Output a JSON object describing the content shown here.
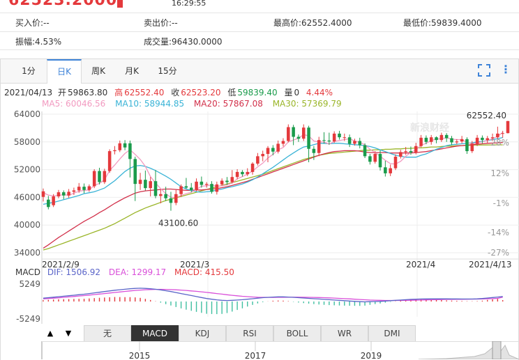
{
  "top": {
    "big_price": "62523.2000",
    "time": "16:29:55"
  },
  "quote": {
    "buy": "买入价:--",
    "sell": "卖出价:--",
    "high": "最高价:62552.4000",
    "low": "最低价:59839.4000",
    "amplitude": "振幅:4.53%",
    "volume": "成交量:96430.0000"
  },
  "tabs": [
    "1分",
    "日K",
    "周K",
    "月K",
    "15分"
  ],
  "active_tab": "日K",
  "ohlc_line": {
    "date": "2021/04/13",
    "open_label": "开",
    "open": "59863.80",
    "high_label": "高",
    "high": "62552.40",
    "close_label": "收",
    "close": "62523.20",
    "low_label": "低",
    "low": "59839.40",
    "vol_label": "量",
    "vol": "0",
    "pct": "4.44%"
  },
  "ma_legend": {
    "ma5": "MA5: 60046.56",
    "ma10": "MA10: 58944.85",
    "ma20": "MA20: 57867.08",
    "ma30": "MA30: 57369.79"
  },
  "macd_legend": {
    "name": "MACD",
    "dif": "DIF: 1506.92",
    "dea": "DEA: 1299.17",
    "macd": "MACD: 415.50"
  },
  "indicator_tabs": [
    "无",
    "MACD",
    "KDJ",
    "RSI",
    "BOLL",
    "WR",
    "DMI"
  ],
  "active_indicator": "MACD",
  "nav_arrows": {
    "up": "▲",
    "down": "▼"
  },
  "overview_years": [
    "2015",
    "2017",
    "2019"
  ],
  "watermark": "新浪财经",
  "colors": {
    "up": "#e4393c",
    "down": "#1a9b4b",
    "ma5": "#f29ac0",
    "ma10": "#39b3d6",
    "ma20": "#d2304a",
    "ma30": "#9ab528",
    "dif": "#5a64c8",
    "dea": "#d94fd9",
    "macd": "#e4393c",
    "accent": "#3e83d8"
  },
  "chart_data": {
    "type": "candlestick",
    "price_axis": {
      "ticks": [
        "64000",
        "58000",
        "52000",
        "46000",
        "40000",
        "34000"
      ],
      "values": [
        64000,
        58000,
        52000,
        46000,
        40000,
        34000
      ]
    },
    "pct_axis": {
      "ticks": [
        "28%",
        "12%",
        "-1%",
        "-14%",
        "-27%"
      ]
    },
    "x_labels": [
      "2021/2/9",
      "2021/3",
      "2021/4",
      "2021/4/13"
    ],
    "annotations": {
      "max": "62552.40",
      "min": "43100.60"
    },
    "candles": [
      {
        "o": 46100,
        "c": 47300,
        "h": 47900,
        "l": 45100
      },
      {
        "o": 45500,
        "c": 43900,
        "h": 46300,
        "l": 43400
      },
      {
        "o": 44300,
        "c": 46200,
        "h": 46700,
        "l": 43900
      },
      {
        "o": 46200,
        "c": 47100,
        "h": 47600,
        "l": 45800
      },
      {
        "o": 47100,
        "c": 46400,
        "h": 47500,
        "l": 45600
      },
      {
        "o": 46400,
        "c": 47200,
        "h": 47800,
        "l": 45900
      },
      {
        "o": 47200,
        "c": 47500,
        "h": 48100,
        "l": 46500
      },
      {
        "o": 47500,
        "c": 48300,
        "h": 49100,
        "l": 47000
      },
      {
        "o": 48300,
        "c": 47600,
        "h": 49000,
        "l": 46900
      },
      {
        "o": 47600,
        "c": 48400,
        "h": 48800,
        "l": 47200
      },
      {
        "o": 48400,
        "c": 51700,
        "h": 52100,
        "l": 48000
      },
      {
        "o": 51700,
        "c": 49300,
        "h": 52400,
        "l": 48800
      },
      {
        "o": 49300,
        "c": 51700,
        "h": 52200,
        "l": 48900
      },
      {
        "o": 51700,
        "c": 56000,
        "h": 56400,
        "l": 51300
      },
      {
        "o": 56000,
        "c": 56200,
        "h": 57100,
        "l": 55300
      },
      {
        "o": 56200,
        "c": 57700,
        "h": 58300,
        "l": 55800
      },
      {
        "o": 57700,
        "c": 56800,
        "h": 58400,
        "l": 56200
      },
      {
        "o": 57700,
        "c": 54300,
        "h": 58300,
        "l": 50300
      },
      {
        "o": 54300,
        "c": 48900,
        "h": 54800,
        "l": 45200
      },
      {
        "o": 48900,
        "c": 49800,
        "h": 51300,
        "l": 47600
      },
      {
        "o": 49800,
        "c": 48000,
        "h": 51800,
        "l": 47500
      },
      {
        "o": 48000,
        "c": 49500,
        "h": 50400,
        "l": 46200
      },
      {
        "o": 49500,
        "c": 46300,
        "h": 51900,
        "l": 45800
      },
      {
        "o": 46300,
        "c": 46700,
        "h": 47700,
        "l": 44700
      },
      {
        "o": 46700,
        "c": 45800,
        "h": 48300,
        "l": 45200
      },
      {
        "o": 45800,
        "c": 44800,
        "h": 47200,
        "l": 43100
      },
      {
        "o": 44800,
        "c": 46700,
        "h": 47600,
        "l": 44300
      },
      {
        "o": 46700,
        "c": 48400,
        "h": 48800,
        "l": 46100
      },
      {
        "o": 48400,
        "c": 48100,
        "h": 50200,
        "l": 47800
      },
      {
        "o": 48100,
        "c": 47600,
        "h": 49100,
        "l": 47100
      },
      {
        "o": 47600,
        "c": 49400,
        "h": 50100,
        "l": 47300
      },
      {
        "o": 49400,
        "c": 48700,
        "h": 50500,
        "l": 48100
      },
      {
        "o": 48700,
        "c": 48900,
        "h": 49300,
        "l": 48100
      },
      {
        "o": 48900,
        "c": 47200,
        "h": 49500,
        "l": 46800
      },
      {
        "o": 47200,
        "c": 48800,
        "h": 49400,
        "l": 46600
      },
      {
        "o": 48800,
        "c": 49600,
        "h": 50100,
        "l": 48500
      },
      {
        "o": 49600,
        "c": 49300,
        "h": 50400,
        "l": 48700
      },
      {
        "o": 49300,
        "c": 50400,
        "h": 51900,
        "l": 49000
      },
      {
        "o": 50400,
        "c": 51500,
        "h": 52100,
        "l": 49900
      },
      {
        "o": 51500,
        "c": 51000,
        "h": 51900,
        "l": 50500
      },
      {
        "o": 51000,
        "c": 51500,
        "h": 52300,
        "l": 50600
      },
      {
        "o": 51500,
        "c": 53300,
        "h": 53600,
        "l": 50900
      },
      {
        "o": 53300,
        "c": 54900,
        "h": 55600,
        "l": 52900
      },
      {
        "o": 54900,
        "c": 55400,
        "h": 56100,
        "l": 53800
      },
      {
        "o": 55400,
        "c": 56700,
        "h": 57100,
        "l": 53600
      },
      {
        "o": 56700,
        "c": 55900,
        "h": 57300,
        "l": 55100
      },
      {
        "o": 55900,
        "c": 57600,
        "h": 58300,
        "l": 55500
      },
      {
        "o": 57600,
        "c": 58200,
        "h": 58800,
        "l": 57000
      },
      {
        "o": 58200,
        "c": 61200,
        "h": 61800,
        "l": 57900
      },
      {
        "o": 61200,
        "c": 59100,
        "h": 61700,
        "l": 57300
      },
      {
        "o": 59100,
        "c": 58700,
        "h": 59600,
        "l": 58000
      },
      {
        "o": 58700,
        "c": 61100,
        "h": 61800,
        "l": 58200
      },
      {
        "o": 61100,
        "c": 56500,
        "h": 61500,
        "l": 53600
      },
      {
        "o": 56500,
        "c": 55600,
        "h": 57100,
        "l": 54100
      },
      {
        "o": 55600,
        "c": 58400,
        "h": 59100,
        "l": 54900
      },
      {
        "o": 58400,
        "c": 58300,
        "h": 60100,
        "l": 57600
      },
      {
        "o": 58300,
        "c": 58100,
        "h": 60000,
        "l": 57400
      },
      {
        "o": 58100,
        "c": 59800,
        "h": 60300,
        "l": 57800
      },
      {
        "o": 59800,
        "c": 59000,
        "h": 60400,
        "l": 58500
      },
      {
        "o": 59000,
        "c": 59000,
        "h": 59800,
        "l": 58200
      },
      {
        "o": 59000,
        "c": 57600,
        "h": 59600,
        "l": 56900
      },
      {
        "o": 57600,
        "c": 58200,
        "h": 58700,
        "l": 57200
      },
      {
        "o": 58200,
        "c": 57300,
        "h": 58900,
        "l": 56600
      },
      {
        "o": 57300,
        "c": 54900,
        "h": 57700,
        "l": 54500
      },
      {
        "o": 54900,
        "c": 53700,
        "h": 55400,
        "l": 53100
      },
      {
        "o": 53700,
        "c": 55400,
        "h": 56000,
        "l": 53300
      },
      {
        "o": 55400,
        "c": 52500,
        "h": 56200,
        "l": 51800
      },
      {
        "o": 52500,
        "c": 51200,
        "h": 53900,
        "l": 50500
      },
      {
        "o": 51200,
        "c": 52300,
        "h": 53100,
        "l": 50600
      },
      {
        "o": 52300,
        "c": 54800,
        "h": 55300,
        "l": 51900
      },
      {
        "o": 54800,
        "c": 55800,
        "h": 56300,
        "l": 54400
      },
      {
        "o": 55800,
        "c": 56000,
        "h": 56900,
        "l": 55200
      },
      {
        "o": 56000,
        "c": 55700,
        "h": 57000,
        "l": 55200
      },
      {
        "o": 55700,
        "c": 57100,
        "h": 57800,
        "l": 55300
      },
      {
        "o": 57100,
        "c": 58900,
        "h": 59500,
        "l": 56800
      },
      {
        "o": 58900,
        "c": 58000,
        "h": 59400,
        "l": 57500
      },
      {
        "o": 58000,
        "c": 59000,
        "h": 59500,
        "l": 57400
      },
      {
        "o": 59000,
        "c": 58400,
        "h": 59200,
        "l": 57700
      },
      {
        "o": 58400,
        "c": 59500,
        "h": 60000,
        "l": 58000
      },
      {
        "o": 59500,
        "c": 58800,
        "h": 59900,
        "l": 58000
      },
      {
        "o": 58800,
        "c": 57900,
        "h": 59300,
        "l": 57300
      },
      {
        "o": 57900,
        "c": 58100,
        "h": 58600,
        "l": 57500
      },
      {
        "o": 58100,
        "c": 58600,
        "h": 59300,
        "l": 57700
      },
      {
        "o": 58600,
        "c": 56000,
        "h": 59000,
        "l": 55400
      },
      {
        "o": 56000,
        "c": 57600,
        "h": 58200,
        "l": 55600
      },
      {
        "o": 57600,
        "c": 58900,
        "h": 59500,
        "l": 57100
      },
      {
        "o": 58900,
        "c": 58400,
        "h": 59400,
        "l": 57700
      },
      {
        "o": 58400,
        "c": 58800,
        "h": 59300,
        "l": 57800
      },
      {
        "o": 58800,
        "c": 59000,
        "h": 59800,
        "l": 58200
      },
      {
        "o": 59000,
        "c": 59800,
        "h": 61300,
        "l": 58600
      },
      {
        "o": 59800,
        "c": 59900,
        "h": 60400,
        "l": 58900
      },
      {
        "o": 59900,
        "c": 62523,
        "h": 62552,
        "l": 59839
      }
    ],
    "ma5": [
      47000,
      46500,
      46300,
      46400,
      46600,
      46400,
      46900,
      47300,
      47500,
      47600,
      48600,
      49000,
      49800,
      51800,
      53000,
      54300,
      55500,
      56300,
      55300,
      54200,
      52700,
      50500,
      49100,
      47900,
      46800,
      46000,
      46000,
      46400,
      46800,
      47100,
      47700,
      48400,
      48500,
      48700,
      48400,
      48500,
      48700,
      49100,
      50000,
      50500,
      51000,
      51700,
      52600,
      53400,
      54500,
      55300,
      56300,
      56800,
      58000,
      58400,
      58800,
      59600,
      59300,
      58200,
      58000,
      58000,
      57500,
      58100,
      58300,
      58500,
      58700,
      58200,
      57900,
      57400,
      56400,
      55700,
      54900,
      54000,
      53300,
      53200,
      53800,
      54900,
      55700,
      56300,
      57300,
      57700,
      58300,
      58600,
      58700,
      58900,
      58600,
      58500,
      58500,
      57900,
      57600,
      57800,
      58000,
      58300,
      58700,
      59200,
      60046
    ],
    "ma10": [
      44500,
      44700,
      44900,
      45200,
      45500,
      45800,
      46100,
      46400,
      46800,
      47000,
      47200,
      47600,
      48000,
      48800,
      49600,
      50600,
      51600,
      52300,
      52800,
      52900,
      52700,
      52300,
      51800,
      51200,
      50600,
      49900,
      49100,
      48300,
      47800,
      47500,
      47200,
      47100,
      47200,
      47300,
      47600,
      47800,
      48100,
      48300,
      48600,
      48900,
      49300,
      49800,
      50400,
      51100,
      51800,
      52500,
      53300,
      54100,
      54900,
      55600,
      56300,
      56900,
      57100,
      57400,
      57700,
      57700,
      57600,
      57700,
      57700,
      57600,
      57500,
      57400,
      57300,
      57200,
      57000,
      56700,
      56300,
      55900,
      55500,
      55100,
      54900,
      54700,
      54700,
      54700,
      55100,
      55400,
      55900,
      56400,
      56800,
      57200,
      57400,
      57500,
      57600,
      57700,
      57800,
      58000,
      58100,
      58300,
      58500,
      58700,
      58944
    ],
    "ma20": [
      35000,
      35700,
      36500,
      37300,
      38000,
      38700,
      39400,
      40100,
      40800,
      41400,
      42000,
      42700,
      43300,
      44000,
      44700,
      45300,
      45900,
      46400,
      46900,
      47200,
      47400,
      47500,
      47600,
      47700,
      47800,
      47800,
      47700,
      47600,
      47500,
      47500,
      47600,
      47600,
      47700,
      47800,
      47900,
      48100,
      48300,
      48600,
      48900,
      49200,
      49500,
      49900,
      50300,
      50700,
      51100,
      51500,
      51900,
      52300,
      52700,
      53100,
      53500,
      53900,
      54300,
      54700,
      55100,
      55400,
      55700,
      55900,
      56000,
      56100,
      56100,
      56100,
      56000,
      55800,
      55700,
      55700,
      55700,
      55700,
      55600,
      55600,
      55600,
      55600,
      55600,
      55700,
      55800,
      55900,
      56100,
      56300,
      56500,
      56700,
      56900,
      57100,
      57200,
      57300,
      57400,
      57500,
      57600,
      57700,
      57750,
      57800,
      57867
    ],
    "ma30": [
      34600,
      34900,
      35300,
      35700,
      36100,
      36500,
      36900,
      37300,
      37700,
      38100,
      38500,
      38900,
      39300,
      39800,
      40300,
      40900,
      41500,
      42100,
      42700,
      43200,
      43700,
      44100,
      44500,
      44900,
      45300,
      45600,
      45900,
      46200,
      46500,
      46800,
      47100,
      47400,
      47700,
      48000,
      48300,
      48600,
      48900,
      49200,
      49500,
      49800,
      50100,
      50400,
      50700,
      51000,
      51400,
      51800,
      52200,
      52600,
      53000,
      53400,
      53800,
      54200,
      54500,
      54800,
      55100,
      55300,
      55500,
      55600,
      55700,
      55800,
      55900,
      56000,
      56100,
      56200,
      56200,
      56300,
      56300,
      56400,
      56400,
      56500,
      56500,
      56600,
      56600,
      56700,
      56700,
      56800,
      56900,
      56900,
      57000,
      57100,
      57100,
      57200,
      57200,
      57250,
      57300,
      57300,
      57330,
      57340,
      57350,
      57360,
      57369
    ],
    "macd_axis": {
      "ticks": [
        "5249",
        "-5249"
      ],
      "values": [
        5249,
        -5249
      ]
    },
    "dif": [
      1000,
      1150,
      1300,
      1450,
      1600,
      1750,
      1900,
      2050,
      2200,
      2400,
      2600,
      2800,
      3000,
      3200,
      3400,
      3550,
      3700,
      3850,
      3950,
      4000,
      3950,
      3850,
      3700,
      3500,
      3250,
      3000,
      2700,
      2400,
      2100,
      1800,
      1500,
      1200,
      900,
      700,
      500,
      350,
      300,
      350,
      450,
      550,
      700,
      850,
      1000,
      1150,
      1250,
      1350,
      1400,
      1400,
      1350,
      1250,
      1150,
      1050,
      950,
      850,
      750,
      650,
      550,
      450,
      350,
      250,
      150,
      50,
      -50,
      -100,
      -50,
      0,
      50,
      150,
      250,
      350,
      450,
      550,
      650,
      700,
      750,
      780,
      800,
      810,
      800,
      790,
      780,
      770,
      760,
      750,
      760,
      800,
      900,
      1050,
      1200,
      1350,
      1506
    ],
    "dea": [
      800,
      900,
      1000,
      1120,
      1250,
      1380,
      1510,
      1650,
      1790,
      1940,
      2090,
      2240,
      2400,
      2560,
      2720,
      2880,
      3040,
      3190,
      3330,
      3450,
      3550,
      3620,
      3660,
      3670,
      3650,
      3600,
      3530,
      3440,
      3330,
      3200,
      3060,
      2910,
      2750,
      2580,
      2400,
      2220,
      2040,
      1870,
      1720,
      1580,
      1460,
      1360,
      1290,
      1250,
      1230,
      1230,
      1250,
      1270,
      1290,
      1300,
      1300,
      1290,
      1270,
      1240,
      1200,
      1150,
      1090,
      1020,
      950,
      870,
      790,
      700,
      610,
      520,
      450,
      390,
      350,
      320,
      310,
      310,
      320,
      340,
      370,
      400,
      440,
      480,
      520,
      560,
      590,
      620,
      640,
      660,
      680,
      700,
      720,
      740,
      770,
      810,
      870,
      950,
      1299
    ],
    "macd": [
      400,
      500,
      600,
      660,
      700,
      740,
      780,
      800,
      820,
      920,
      1020,
      1120,
      1200,
      1280,
      1360,
      1340,
      1320,
      1320,
      1240,
      1100,
      800,
      460,
      80,
      -340,
      -800,
      -1200,
      -1660,
      -2080,
      -2460,
      -2800,
      -3120,
      -3420,
      -3700,
      -3760,
      -3800,
      -3740,
      -3480,
      -3040,
      -2540,
      -2060,
      -1520,
      -1020,
      -580,
      -200,
      40,
      240,
      300,
      260,
      120,
      -100,
      -300,
      -480,
      -640,
      -780,
      -900,
      -1000,
      -1080,
      -1140,
      -1200,
      -1240,
      -1280,
      -1300,
      -1320,
      -1240,
      -1000,
      -780,
      -600,
      -340,
      -120,
      80,
      260,
      420,
      560,
      600,
      620,
      600,
      560,
      500,
      420,
      340,
      280,
      220,
      160,
      100,
      80,
      120,
      260,
      480,
      660,
      800,
      415.5
    ]
  }
}
